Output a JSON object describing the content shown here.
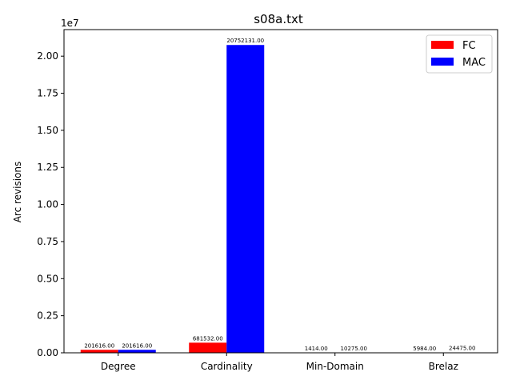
{
  "chart_data": {
    "type": "bar",
    "title": "s08a.txt",
    "xlabel": "",
    "ylabel": "Arc revisions",
    "y_offset_label": "1e7",
    "categories": [
      "Degree",
      "Cardinality",
      "Min-Domain",
      "Brelaz"
    ],
    "series": [
      {
        "name": "FC",
        "color": "#ff0000",
        "values": [
          201616,
          681532,
          1414,
          5984
        ],
        "labels": [
          "201616.00",
          "681532.00",
          "1414.00",
          "5984.00"
        ]
      },
      {
        "name": "MAC",
        "color": "#0000ff",
        "values": [
          201616,
          20752131,
          10275,
          24475
        ],
        "labels": [
          "201616.00",
          "20752131.00",
          "10275.00",
          "24475.00"
        ]
      }
    ],
    "ylim": [
      0,
      21790000
    ],
    "yticks": [
      0,
      2500000,
      5000000,
      7500000,
      10000000,
      12500000,
      15000000,
      17500000,
      20000000
    ],
    "ytick_labels": [
      "0.00",
      "0.25",
      "0.50",
      "0.75",
      "1.00",
      "1.25",
      "1.50",
      "1.75",
      "2.00"
    ],
    "grid": false,
    "legend_position": "top-right"
  }
}
